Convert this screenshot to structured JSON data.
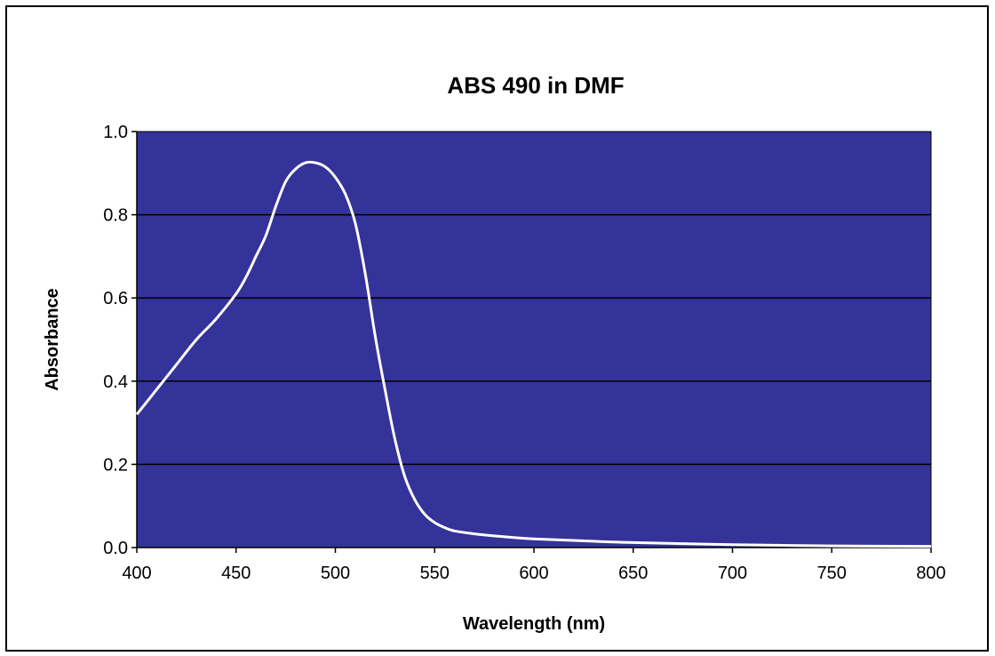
{
  "chart_data": {
    "type": "line",
    "title": "ABS 490 in DMF",
    "xlabel": "Wavelength (nm)",
    "ylabel": "Absorbance",
    "xlim": [
      400,
      800
    ],
    "ylim": [
      0,
      1.0
    ],
    "xticks": [
      "400",
      "450",
      "500",
      "550",
      "600",
      "650",
      "700",
      "750",
      "800"
    ],
    "xtick_values": [
      400,
      450,
      500,
      550,
      600,
      650,
      700,
      750,
      800
    ],
    "yticks": [
      "0.0",
      "0.2",
      "0.4",
      "0.6",
      "0.8",
      "1.0"
    ],
    "ytick_values": [
      0,
      0.2,
      0.4,
      0.6,
      0.8,
      1.0
    ],
    "grid": "horizontal",
    "legend": "none",
    "colors": {
      "plot_background": "#333399",
      "line": "#ffffff",
      "gridline": "#000000"
    },
    "series": [
      {
        "x": [
          400,
          410,
          420,
          430,
          440,
          450,
          455,
          460,
          465,
          470,
          475,
          480,
          485,
          490,
          495,
          500,
          505,
          510,
          515,
          520,
          525,
          530,
          535,
          540,
          545,
          550,
          555,
          560,
          570,
          580,
          590,
          600,
          620,
          650,
          700,
          750,
          800
        ],
        "y": [
          0.32,
          0.38,
          0.44,
          0.5,
          0.55,
          0.61,
          0.65,
          0.7,
          0.75,
          0.82,
          0.88,
          0.91,
          0.925,
          0.925,
          0.915,
          0.89,
          0.85,
          0.78,
          0.66,
          0.51,
          0.38,
          0.26,
          0.17,
          0.115,
          0.08,
          0.06,
          0.048,
          0.04,
          0.033,
          0.028,
          0.024,
          0.021,
          0.017,
          0.012,
          0.007,
          0.004,
          0.003
        ]
      }
    ]
  }
}
